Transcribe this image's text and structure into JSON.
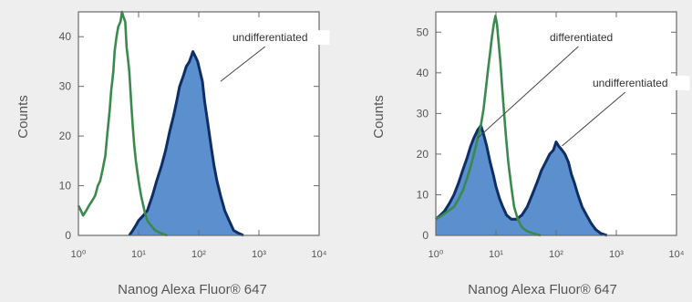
{
  "chart_data": [
    {
      "type": "histogram",
      "title": "",
      "xlabel": "Nanog Alexa Fluor® 647",
      "ylabel": "Counts",
      "x_scale": "log",
      "xlim": [
        1,
        10000
      ],
      "ylim": [
        0,
        45
      ],
      "x_ticks": [
        {
          "value": 1,
          "label": "10⁰"
        },
        {
          "value": 10,
          "label": "10¹"
        },
        {
          "value": 100,
          "label": "10²"
        },
        {
          "value": 1000,
          "label": "10³"
        },
        {
          "value": 10000,
          "label": "10⁴"
        }
      ],
      "y_ticks": [
        {
          "value": 0,
          "label": "0"
        },
        {
          "value": 10,
          "label": "10"
        },
        {
          "value": 20,
          "label": "20"
        },
        {
          "value": 30,
          "label": "30"
        },
        {
          "value": 40,
          "label": "40"
        }
      ],
      "series": [
        {
          "name": "",
          "style": "green-line",
          "color": "#3a8a4e",
          "points": [
            [
              1.0,
              6
            ],
            [
              1.1,
              5
            ],
            [
              1.2,
              4
            ],
            [
              1.35,
              5
            ],
            [
              1.5,
              6
            ],
            [
              1.7,
              7
            ],
            [
              1.9,
              8
            ],
            [
              2.1,
              10
            ],
            [
              2.3,
              11
            ],
            [
              2.5,
              13
            ],
            [
              2.8,
              16
            ],
            [
              3.0,
              20
            ],
            [
              3.3,
              25
            ],
            [
              3.5,
              29
            ],
            [
              3.8,
              33
            ],
            [
              4.0,
              37
            ],
            [
              4.3,
              40
            ],
            [
              4.6,
              42
            ],
            [
              5.0,
              43
            ],
            [
              5.3,
              45
            ],
            [
              5.6,
              44
            ],
            [
              6.0,
              43
            ],
            [
              6.3,
              38
            ],
            [
              6.6,
              36
            ],
            [
              7.0,
              33
            ],
            [
              7.5,
              27
            ],
            [
              8.0,
              22
            ],
            [
              8.5,
              18
            ],
            [
              9.0,
              15
            ],
            [
              10.0,
              11
            ],
            [
              11.0,
              8
            ],
            [
              12.5,
              5
            ],
            [
              14.0,
              3
            ],
            [
              16.0,
              2
            ],
            [
              19.0,
              1
            ],
            [
              23.0,
              0.5
            ],
            [
              30.0,
              0
            ]
          ]
        },
        {
          "name": "",
          "style": "filled-blue",
          "color": "#0d2f66",
          "fill": "#5b8fce",
          "points": [
            [
              7.0,
              0
            ],
            [
              8.0,
              1
            ],
            [
              9.0,
              2
            ],
            [
              10.0,
              3
            ],
            [
              12.0,
              4
            ],
            [
              14.0,
              5
            ],
            [
              17.0,
              8
            ],
            [
              20.0,
              11
            ],
            [
              24.0,
              14
            ],
            [
              28.0,
              17
            ],
            [
              33.0,
              21
            ],
            [
              38.0,
              24
            ],
            [
              43.0,
              27
            ],
            [
              48.0,
              30
            ],
            [
              55.0,
              32
            ],
            [
              62.0,
              34
            ],
            [
              70.0,
              35
            ],
            [
              80.0,
              37
            ],
            [
              88.0,
              36
            ],
            [
              96.0,
              35
            ],
            [
              105.0,
              33
            ],
            [
              115.0,
              31
            ],
            [
              125.0,
              27
            ],
            [
              140.0,
              23
            ],
            [
              160.0,
              18
            ],
            [
              180.0,
              14
            ],
            [
              200.0,
              11
            ],
            [
              230.0,
              8
            ],
            [
              270.0,
              5
            ],
            [
              320.0,
              3
            ],
            [
              380.0,
              1
            ],
            [
              450.0,
              0.5
            ],
            [
              550.0,
              0
            ]
          ]
        }
      ],
      "annotations": [
        {
          "text": "undifferentiated",
          "target": [
            230,
            31
          ]
        }
      ]
    },
    {
      "type": "histogram",
      "title": "",
      "xlabel": "Nanog Alexa Fluor® 647",
      "ylabel": "Counts",
      "x_scale": "log",
      "xlim": [
        1,
        10000
      ],
      "ylim": [
        0,
        55
      ],
      "x_ticks": [
        {
          "value": 1,
          "label": "10⁰"
        },
        {
          "value": 10,
          "label": "10¹"
        },
        {
          "value": 100,
          "label": "10²"
        },
        {
          "value": 1000,
          "label": "10³"
        },
        {
          "value": 10000,
          "label": "10⁴"
        }
      ],
      "y_ticks": [
        {
          "value": 0,
          "label": "0"
        },
        {
          "value": 10,
          "label": "10"
        },
        {
          "value": 20,
          "label": "20"
        },
        {
          "value": 30,
          "label": "30"
        },
        {
          "value": 40,
          "label": "40"
        },
        {
          "value": 50,
          "label": "50"
        }
      ],
      "series": [
        {
          "name": "",
          "style": "filled-blue",
          "color": "#0d2f66",
          "fill": "#5b8fce",
          "points": [
            [
              1.0,
              4
            ],
            [
              1.2,
              5
            ],
            [
              1.4,
              6
            ],
            [
              1.7,
              8
            ],
            [
              2.0,
              10
            ],
            [
              2.4,
              13
            ],
            [
              2.8,
              16
            ],
            [
              3.3,
              19
            ],
            [
              3.8,
              22
            ],
            [
              4.3,
              24
            ],
            [
              5.0,
              26
            ],
            [
              5.6,
              27
            ],
            [
              6.2,
              25
            ],
            [
              7.0,
              22
            ],
            [
              8.0,
              18
            ],
            [
              9.0,
              15
            ],
            [
              10.0,
              12
            ],
            [
              11.5,
              9
            ],
            [
              13.0,
              7
            ],
            [
              15.0,
              5
            ],
            [
              18.0,
              4
            ],
            [
              22.0,
              4
            ],
            [
              27.0,
              5
            ],
            [
              33.0,
              7
            ],
            [
              40.0,
              10
            ],
            [
              48.0,
              13
            ],
            [
              57.0,
              16
            ],
            [
              67.0,
              18
            ],
            [
              78.0,
              20
            ],
            [
              90.0,
              21
            ],
            [
              100.0,
              23
            ],
            [
              110.0,
              22
            ],
            [
              125.0,
              21
            ],
            [
              140.0,
              20
            ],
            [
              160.0,
              18
            ],
            [
              180.0,
              15
            ],
            [
              200.0,
              13
            ],
            [
              230.0,
              10
            ],
            [
              270.0,
              7
            ],
            [
              320.0,
              5
            ],
            [
              380.0,
              3
            ],
            [
              450.0,
              1.5
            ],
            [
              550.0,
              0.5
            ],
            [
              700.0,
              0
            ]
          ]
        },
        {
          "name": "",
          "style": "green-line",
          "color": "#3a8a4e",
          "points": [
            [
              1.0,
              4
            ],
            [
              1.3,
              5
            ],
            [
              1.6,
              6
            ],
            [
              2.0,
              7
            ],
            [
              2.4,
              9
            ],
            [
              2.8,
              11
            ],
            [
              3.3,
              14
            ],
            [
              3.8,
              17
            ],
            [
              4.3,
              20
            ],
            [
              5.0,
              24
            ],
            [
              5.6,
              27
            ],
            [
              6.2,
              31
            ],
            [
              6.8,
              36
            ],
            [
              7.4,
              41
            ],
            [
              8.0,
              45
            ],
            [
              8.6,
              49
            ],
            [
              9.2,
              52
            ],
            [
              9.8,
              54
            ],
            [
              10.4,
              52
            ],
            [
              11.0,
              48
            ],
            [
              11.8,
              43
            ],
            [
              12.6,
              37
            ],
            [
              13.5,
              31
            ],
            [
              14.5,
              25
            ],
            [
              16.0,
              18
            ],
            [
              18.0,
              12
            ],
            [
              20.0,
              7
            ],
            [
              23.0,
              4
            ],
            [
              27.0,
              2
            ],
            [
              33.0,
              1
            ],
            [
              42.0,
              0.5
            ],
            [
              55.0,
              0
            ]
          ]
        }
      ],
      "annotations": [
        {
          "text": "differentiated",
          "target": [
            5.0,
            24
          ]
        },
        {
          "text": "undifferentiated",
          "target": [
            125,
            22
          ]
        }
      ]
    }
  ]
}
